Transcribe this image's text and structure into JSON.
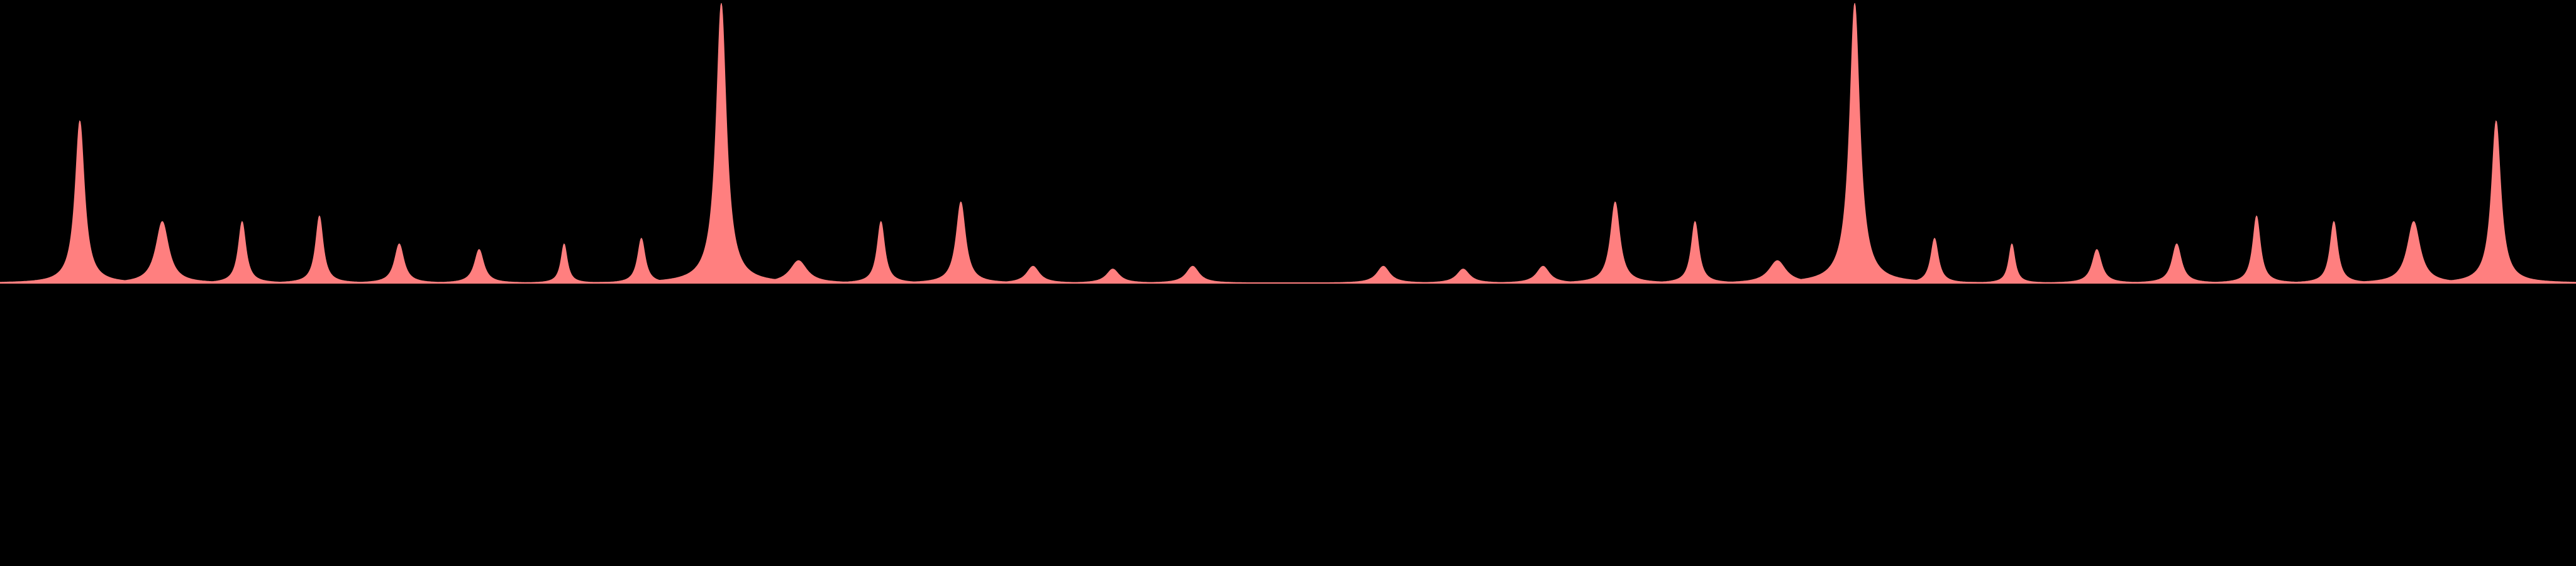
{
  "colors": {
    "background": "#000000",
    "series": "#ff7f7f"
  },
  "chart_data": {
    "type": "area",
    "title": "",
    "xlabel": "",
    "ylabel": "",
    "axes_visible": false,
    "grid": false,
    "legend": "none",
    "xlim": [
      0,
      1
    ],
    "ylim": [
      0,
      1
    ],
    "peaks": [
      {
        "x": 0.031,
        "y": 0.58,
        "w": 0.0022
      },
      {
        "x": 0.063,
        "y": 0.22,
        "w": 0.003
      },
      {
        "x": 0.094,
        "y": 0.22,
        "w": 0.0018
      },
      {
        "x": 0.124,
        "y": 0.24,
        "w": 0.0018
      },
      {
        "x": 0.155,
        "y": 0.14,
        "w": 0.0022
      },
      {
        "x": 0.186,
        "y": 0.12,
        "w": 0.0022
      },
      {
        "x": 0.219,
        "y": 0.14,
        "w": 0.0015
      },
      {
        "x": 0.249,
        "y": 0.16,
        "w": 0.0018
      },
      {
        "x": 0.28,
        "y": 1.0,
        "w": 0.0024
      },
      {
        "x": 0.31,
        "y": 0.08,
        "w": 0.004
      },
      {
        "x": 0.342,
        "y": 0.22,
        "w": 0.0018
      },
      {
        "x": 0.373,
        "y": 0.29,
        "w": 0.0022
      },
      {
        "x": 0.401,
        "y": 0.06,
        "w": 0.003
      },
      {
        "x": 0.432,
        "y": 0.05,
        "w": 0.003
      },
      {
        "x": 0.463,
        "y": 0.06,
        "w": 0.003
      },
      {
        "x": 0.537,
        "y": 0.06,
        "w": 0.003
      },
      {
        "x": 0.568,
        "y": 0.05,
        "w": 0.003
      },
      {
        "x": 0.599,
        "y": 0.06,
        "w": 0.003
      },
      {
        "x": 0.627,
        "y": 0.29,
        "w": 0.0022
      },
      {
        "x": 0.658,
        "y": 0.22,
        "w": 0.0018
      },
      {
        "x": 0.69,
        "y": 0.08,
        "w": 0.004
      },
      {
        "x": 0.72,
        "y": 1.0,
        "w": 0.0024
      },
      {
        "x": 0.751,
        "y": 0.16,
        "w": 0.0018
      },
      {
        "x": 0.781,
        "y": 0.14,
        "w": 0.0015
      },
      {
        "x": 0.814,
        "y": 0.12,
        "w": 0.0022
      },
      {
        "x": 0.845,
        "y": 0.14,
        "w": 0.0022
      },
      {
        "x": 0.876,
        "y": 0.24,
        "w": 0.0018
      },
      {
        "x": 0.906,
        "y": 0.22,
        "w": 0.0018
      },
      {
        "x": 0.937,
        "y": 0.22,
        "w": 0.003
      },
      {
        "x": 0.969,
        "y": 0.58,
        "w": 0.0022
      }
    ]
  }
}
